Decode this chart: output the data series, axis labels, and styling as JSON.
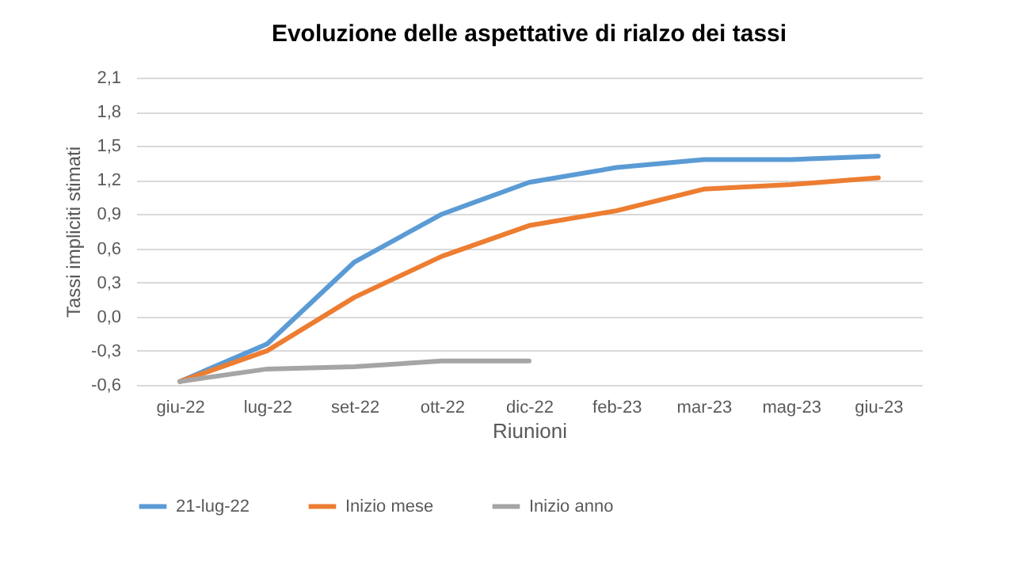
{
  "chart_data": {
    "type": "line",
    "title": "Evoluzione delle aspettative di rialzo dei tassi",
    "xlabel": "Riunioni",
    "ylabel": "Tassi impliciti stimati",
    "categories": [
      "giu-22",
      "lug-22",
      "set-22",
      "ott-22",
      "dic-22",
      "feb-23",
      "mar-23",
      "mag-23",
      "giu-23"
    ],
    "series": [
      {
        "name": "21-lug-22",
        "color": "#5b9bd5",
        "values": [
          -0.57,
          -0.24,
          0.48,
          0.9,
          1.18,
          1.31,
          1.38,
          1.38,
          1.41
        ]
      },
      {
        "name": "Inizio mese",
        "color": "#ed7d31",
        "values": [
          -0.57,
          -0.3,
          0.17,
          0.53,
          0.8,
          0.93,
          1.12,
          1.16,
          1.22
        ]
      },
      {
        "name": "Inizio anno",
        "color": "#a5a5a5",
        "values": [
          -0.57,
          -0.46,
          -0.44,
          -0.39,
          -0.39,
          null,
          null,
          null,
          null
        ]
      }
    ],
    "ylim": [
      -0.6,
      2.1
    ],
    "yticks": [
      {
        "value": -0.6,
        "label": "-0,6"
      },
      {
        "value": -0.3,
        "label": "-0,3"
      },
      {
        "value": 0,
        "label": "0,0"
      },
      {
        "value": 0.3,
        "label": "0,3"
      },
      {
        "value": 0.6,
        "label": "0,6"
      },
      {
        "value": 0.9,
        "label": "0,9"
      },
      {
        "value": 1.2,
        "label": "1,2"
      },
      {
        "value": 1.5,
        "label": "1,5"
      },
      {
        "value": 1.8,
        "label": "1,8"
      },
      {
        "value": 2.1,
        "label": "2,1"
      }
    ],
    "grid": "y",
    "legend": "bottom",
    "marker": "none",
    "line_style": "solid"
  }
}
